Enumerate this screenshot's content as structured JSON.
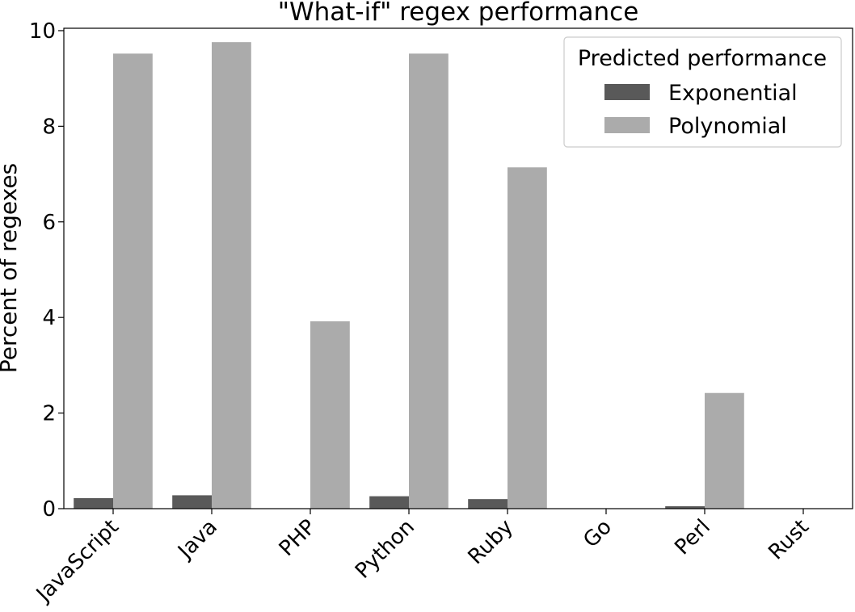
{
  "chart_data": {
    "type": "bar",
    "title": "\"What-if\" regex performance",
    "xlabel": "",
    "ylabel": "Percent of regexes",
    "categories": [
      "JavaScript",
      "Java",
      "PHP",
      "Python",
      "Ruby",
      "Go",
      "Perl",
      "Rust"
    ],
    "series": [
      {
        "name": "Exponential",
        "color": "#595959",
        "values": [
          0.22,
          0.28,
          0.0,
          0.26,
          0.2,
          0.0,
          0.05,
          0.0
        ]
      },
      {
        "name": "Polynomial",
        "color": "#ababab",
        "values": [
          9.52,
          9.76,
          3.92,
          9.52,
          7.14,
          0.0,
          2.42,
          0.0
        ]
      }
    ],
    "ylim": [
      0,
      10.05
    ],
    "yticks": [
      0,
      2,
      4,
      6,
      8,
      10
    ],
    "grid": false,
    "legend": {
      "title": "Predicted performance",
      "placement": "top-right"
    }
  }
}
